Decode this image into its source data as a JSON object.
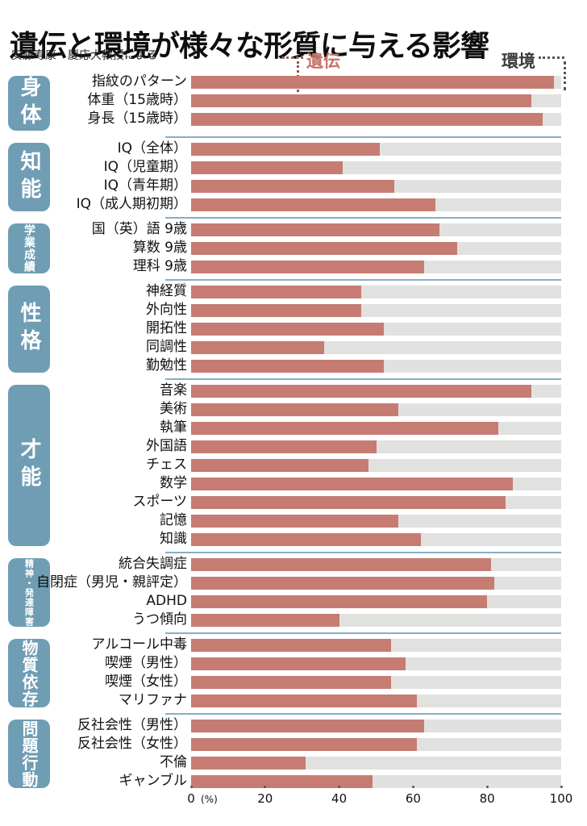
{
  "title": "遺伝と環境が様々な形質に与える影響",
  "subtitle": "安藤寿康・慶応大教授による",
  "legend": {
    "genetics": "遺伝",
    "environment": "環境"
  },
  "axis": {
    "ticks": [
      0,
      20,
      40,
      60,
      80,
      100
    ],
    "unit": "(%)",
    "min": 0,
    "max": 100
  },
  "colors": {
    "genetics": "#c67c72",
    "environment": "#e1e1e0",
    "category": "#6f9db4",
    "separator": "#86aec5",
    "genetics_text": "#c4756b",
    "environment_text": "#3a3a3a"
  },
  "chart_data": {
    "type": "bar",
    "orientation": "horizontal",
    "stacked": true,
    "unit": "%",
    "xlim": [
      0,
      100
    ],
    "series_names": [
      "遺伝",
      "環境"
    ],
    "note": "each bar: genetics value = red segment, environment = remainder to 100%",
    "groups": [
      {
        "category": "身体",
        "items": [
          {
            "label": "指紋のパターン",
            "value": 98
          },
          {
            "label": "体重（15歳時）",
            "value": 92
          },
          {
            "label": "身長（15歳時）",
            "value": 95
          }
        ]
      },
      {
        "category": "知能",
        "items": [
          {
            "label": "IQ（全体）",
            "value": 51
          },
          {
            "label": "IQ（児童期）",
            "value": 41
          },
          {
            "label": "IQ（青年期）",
            "value": 55
          },
          {
            "label": "IQ（成人期初期）",
            "value": 66
          }
        ]
      },
      {
        "category": "学業成績",
        "items": [
          {
            "label": "国（英）語 9歳",
            "value": 67
          },
          {
            "label": "算数 9歳",
            "value": 72
          },
          {
            "label": "理科 9歳",
            "value": 63
          }
        ]
      },
      {
        "category": "性格",
        "items": [
          {
            "label": "神経質",
            "value": 46
          },
          {
            "label": "外向性",
            "value": 46
          },
          {
            "label": "開拓性",
            "value": 52
          },
          {
            "label": "同調性",
            "value": 36
          },
          {
            "label": "勤勉性",
            "value": 52
          }
        ]
      },
      {
        "category": "才能",
        "items": [
          {
            "label": "音楽",
            "value": 92
          },
          {
            "label": "美術",
            "value": 56
          },
          {
            "label": "執筆",
            "value": 83
          },
          {
            "label": "外国語",
            "value": 50
          },
          {
            "label": "チェス",
            "value": 48
          },
          {
            "label": "数学",
            "value": 87
          },
          {
            "label": "スポーツ",
            "value": 85
          },
          {
            "label": "記憶",
            "value": 56
          },
          {
            "label": "知識",
            "value": 62
          }
        ]
      },
      {
        "category": "精神・発達障害",
        "items": [
          {
            "label": "統合失調症",
            "value": 81
          },
          {
            "label": "自閉症（男児・親評定）",
            "value": 82
          },
          {
            "label": "ADHD",
            "value": 80
          },
          {
            "label": "うつ傾向",
            "value": 40
          }
        ]
      },
      {
        "category": "物質依存",
        "items": [
          {
            "label": "アルコール中毒",
            "value": 54
          },
          {
            "label": "喫煙（男性）",
            "value": 58
          },
          {
            "label": "喫煙（女性）",
            "value": 54
          },
          {
            "label": "マリファナ",
            "value": 61
          }
        ]
      },
      {
        "category": "問題行動",
        "items": [
          {
            "label": "反社会性（男性）",
            "value": 63
          },
          {
            "label": "反社会性（女性）",
            "value": 61
          },
          {
            "label": "不倫",
            "value": 31
          },
          {
            "label": "ギャンブル",
            "value": 49
          }
        ]
      }
    ]
  }
}
